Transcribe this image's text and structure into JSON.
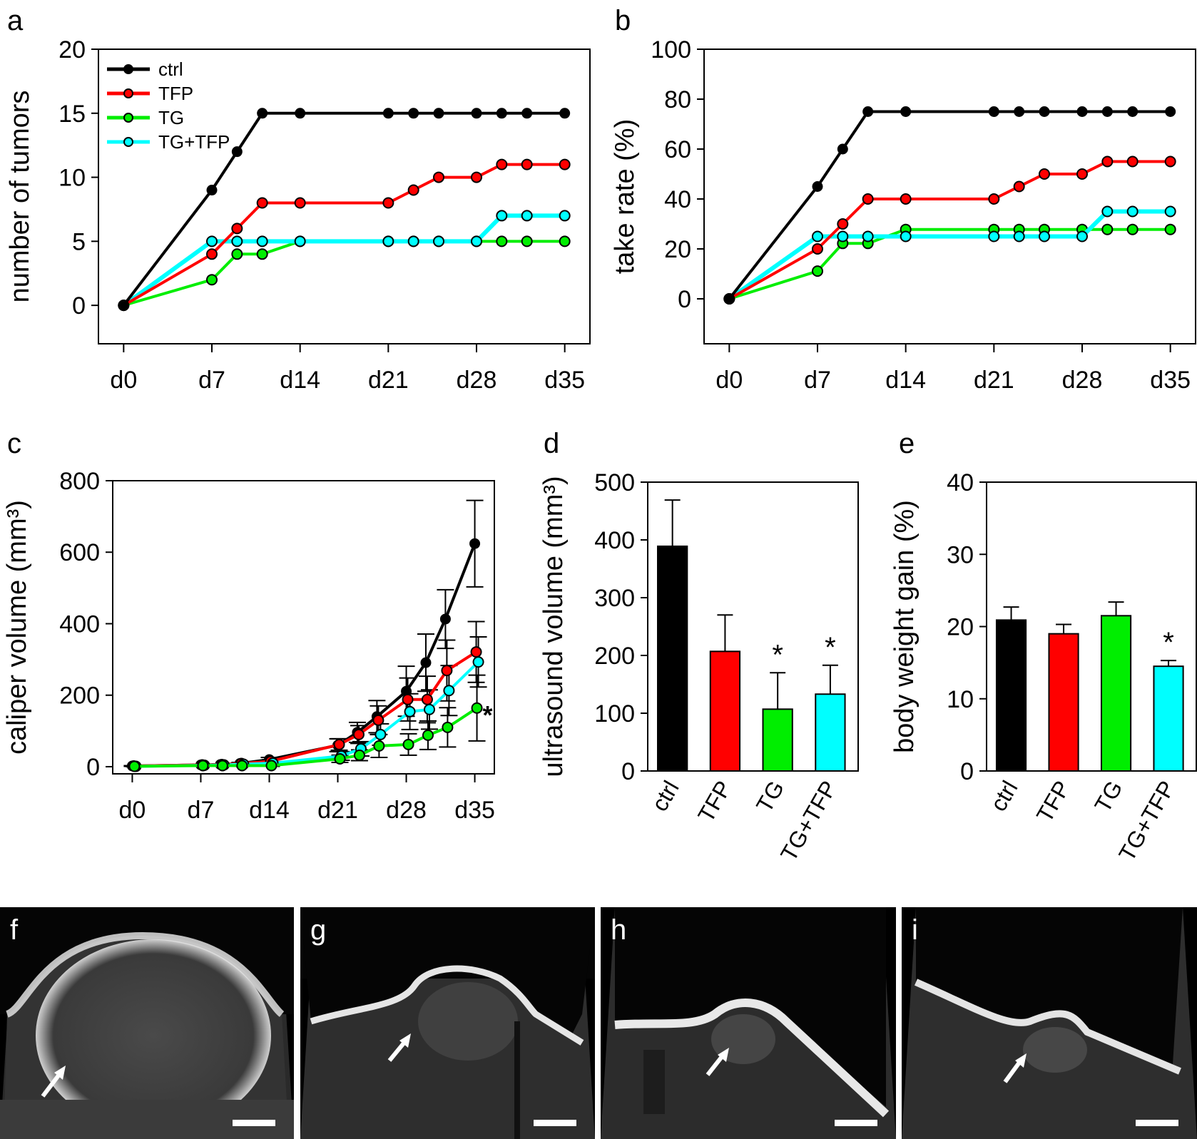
{
  "colors": {
    "ctrl": "#000000",
    "TFP": "#ff0000",
    "TG": "#00ee00",
    "TG+TFP": "#00ffff"
  },
  "chart_data": [
    {
      "panel": "a",
      "type": "line",
      "ylabel": "number of tumors",
      "xlabel": "",
      "ylim": [
        -3,
        20
      ],
      "yticks": [
        0,
        5,
        10,
        15,
        20
      ],
      "xlim": [
        -2,
        37
      ],
      "xticks": [
        0,
        7,
        14,
        21,
        28,
        35
      ],
      "xtick_labels": [
        "d0",
        "d7",
        "d14",
        "d21",
        "d28",
        "d35"
      ],
      "legend": {
        "placement": "top-left",
        "entries": [
          "ctrl",
          "TFP",
          "TG",
          "TG+TFP"
        ]
      },
      "x": [
        0,
        7,
        9,
        11,
        14,
        21,
        23,
        25,
        28,
        30,
        32,
        35
      ],
      "series": [
        {
          "name": "ctrl",
          "values": [
            0,
            9,
            12,
            15,
            15,
            15,
            15,
            15,
            15,
            15,
            15,
            15
          ]
        },
        {
          "name": "TFP",
          "values": [
            0,
            4,
            6,
            8,
            8,
            8,
            9,
            10,
            10,
            11,
            11,
            11
          ]
        },
        {
          "name": "TG",
          "values": [
            0,
            2,
            4,
            4,
            5,
            5,
            5,
            5,
            5,
            5,
            5,
            5
          ]
        },
        {
          "name": "TG+TFP",
          "values": [
            0,
            5,
            5,
            5,
            5,
            5,
            5,
            5,
            5,
            7,
            7,
            7
          ]
        }
      ]
    },
    {
      "panel": "b",
      "type": "line",
      "ylabel": "take rate (%)",
      "xlabel": "",
      "ylim": [
        -18,
        100
      ],
      "yticks": [
        0,
        20,
        40,
        60,
        80,
        100
      ],
      "xlim": [
        -2,
        37
      ],
      "xticks": [
        0,
        7,
        14,
        21,
        28,
        35
      ],
      "xtick_labels": [
        "d0",
        "d7",
        "d14",
        "d21",
        "d28",
        "d35"
      ],
      "x": [
        0,
        7,
        9,
        11,
        14,
        21,
        23,
        25,
        28,
        30,
        32,
        35
      ],
      "series": [
        {
          "name": "ctrl",
          "values": [
            0,
            45,
            60,
            75,
            75,
            75,
            75,
            75,
            75,
            75,
            75,
            75
          ]
        },
        {
          "name": "TFP",
          "values": [
            0,
            20,
            30,
            40,
            40,
            40,
            45,
            50,
            50,
            55,
            55,
            55
          ]
        },
        {
          "name": "TG",
          "values": [
            0,
            11.1,
            22.2,
            22.2,
            27.8,
            27.8,
            27.8,
            27.8,
            27.8,
            27.8,
            27.8,
            27.8
          ]
        },
        {
          "name": "TG+TFP",
          "values": [
            0,
            25,
            25,
            25,
            25,
            25,
            25,
            25,
            25,
            35,
            35,
            35
          ]
        }
      ]
    },
    {
      "panel": "c",
      "type": "line",
      "ylabel": "caliper volume (mm³)",
      "xlabel": "",
      "ylim": [
        -20,
        800
      ],
      "yticks": [
        0,
        200,
        400,
        600,
        800
      ],
      "xlim": [
        -2,
        37
      ],
      "xticks": [
        0,
        7,
        14,
        21,
        28,
        35
      ],
      "xtick_labels": [
        "d0",
        "d7",
        "d14",
        "d21",
        "d28",
        "d35"
      ],
      "x": [
        0,
        7,
        9,
        11,
        14,
        21,
        23,
        25,
        28,
        30,
        32,
        35
      ],
      "annotation": {
        "text": "*",
        "series": "TG",
        "x": 35
      },
      "series": [
        {
          "name": "ctrl",
          "values": [
            2,
            5,
            6,
            9,
            20,
            60,
            96,
            140,
            211,
            291,
            413,
            624
          ],
          "err": [
            1,
            2,
            2,
            3,
            6,
            18,
            28,
            45,
            70,
            80,
            82,
            121
          ]
        },
        {
          "name": "TFP",
          "values": [
            2,
            5,
            6,
            9,
            15,
            62,
            90,
            130,
            188,
            188,
            269,
            321
          ],
          "err": [
            1,
            2,
            2,
            3,
            5,
            16,
            25,
            40,
            60,
            65,
            85,
            85
          ]
        },
        {
          "name": "TG",
          "values": [
            1,
            3,
            3,
            3,
            3,
            22,
            32,
            58,
            62,
            88,
            110,
            164
          ],
          "err": [
            1,
            1,
            1,
            1,
            2,
            10,
            15,
            32,
            30,
            40,
            55,
            92
          ]
        },
        {
          "name": "TG+TFP",
          "values": [
            1,
            4,
            5,
            7,
            10,
            30,
            50,
            90,
            154,
            160,
            213,
            293
          ],
          "err": [
            1,
            1,
            2,
            2,
            4,
            12,
            20,
            30,
            50,
            55,
            70,
            70
          ]
        }
      ]
    },
    {
      "panel": "d",
      "type": "bar",
      "ylabel": "ultrasound volume (mm³)",
      "xlabel": "",
      "ylim": [
        0,
        500
      ],
      "yticks": [
        0,
        100,
        200,
        300,
        400,
        500
      ],
      "categories": [
        "ctrl",
        "TFP",
        "TG",
        "TG+TFP"
      ],
      "values": [
        389,
        207,
        107,
        133
      ],
      "err": [
        80,
        63,
        63,
        50
      ],
      "significance": [
        "",
        "",
        "*",
        "*"
      ]
    },
    {
      "panel": "e",
      "type": "bar",
      "ylabel": "body weight gain (%)",
      "xlabel": "",
      "ylim": [
        0,
        40
      ],
      "yticks": [
        0,
        10,
        20,
        30,
        40
      ],
      "categories": [
        "ctrl",
        "TFP",
        "TG",
        "TG+TFP"
      ],
      "values": [
        20.9,
        19.0,
        21.5,
        14.5
      ],
      "err": [
        1.8,
        1.3,
        1.9,
        0.8
      ],
      "significance": [
        "",
        "",
        "",
        "*"
      ]
    }
  ],
  "panel_labels": {
    "a": "a",
    "b": "b",
    "c": "c",
    "d": "d",
    "e": "e"
  },
  "images": [
    {
      "label": "f",
      "description": "ultrasound image, large tumor with arrow"
    },
    {
      "label": "g",
      "description": "ultrasound image, medium tumor with arrow"
    },
    {
      "label": "h",
      "description": "ultrasound image, small tumor with arrow"
    },
    {
      "label": "i",
      "description": "ultrasound image, small tumor with arrow"
    }
  ]
}
